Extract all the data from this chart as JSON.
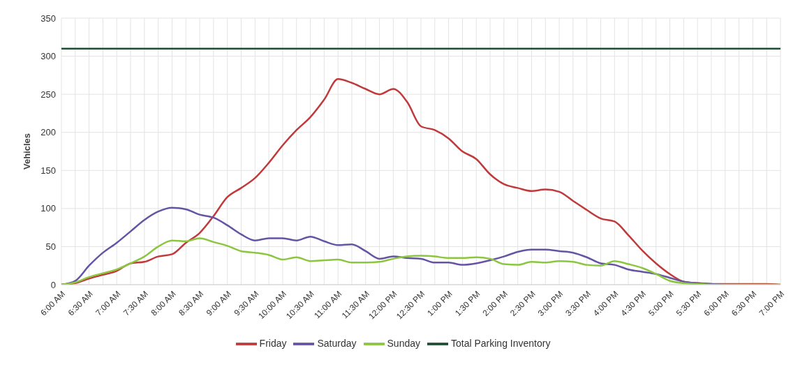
{
  "chart_data": {
    "type": "line",
    "ylabel": "Vehicles",
    "categories": [
      "6:00 AM",
      null,
      "6:30 AM",
      null,
      "7:00 AM",
      null,
      "7:30 AM",
      null,
      "8:00 AM",
      null,
      "8:30 AM",
      null,
      "9:00 AM",
      null,
      "9:30 AM",
      null,
      "10:00 AM",
      null,
      "10:30 AM",
      null,
      "11:00 AM",
      null,
      "11:30 AM",
      null,
      "12:00 PM",
      null,
      "12:30 PM",
      null,
      "1:00 PM",
      null,
      "1:30 PM",
      null,
      "2:00 PM",
      null,
      "2:30 PM",
      null,
      "3:00 PM",
      null,
      "3:30 PM",
      null,
      "4:00 PM",
      null,
      "4:30 PM",
      null,
      "5:00 PM",
      null,
      "5:30 PM",
      null,
      "6:00 PM",
      null,
      "6:30 PM",
      null,
      "7:00 PM"
    ],
    "series": [
      {
        "name": "Friday",
        "color": "#c0393b",
        "values": [
          0,
          2,
          8,
          13,
          18,
          28,
          30,
          37,
          40,
          55,
          68,
          90,
          115,
          127,
          140,
          160,
          183,
          203,
          220,
          243,
          270,
          265,
          257,
          250,
          257,
          240,
          208,
          203,
          192,
          175,
          165,
          145,
          132,
          127,
          123,
          125,
          122,
          110,
          98,
          87,
          83,
          65,
          45,
          28,
          14,
          4,
          2,
          1,
          1,
          1,
          1,
          1,
          0
        ]
      },
      {
        "name": "Saturday",
        "color": "#6553a3",
        "values": [
          0,
          5,
          25,
          42,
          55,
          70,
          85,
          96,
          101,
          99,
          92,
          88,
          78,
          66,
          58,
          61,
          61,
          58,
          63,
          57,
          52,
          53,
          44,
          34,
          37,
          35,
          34,
          29,
          29,
          26,
          28,
          32,
          37,
          43,
          46,
          46,
          44,
          42,
          36,
          28,
          26,
          20,
          17,
          14,
          9,
          4,
          2,
          1,
          0,
          0,
          null,
          null,
          null
        ]
      },
      {
        "name": "Sunday",
        "color": "#8cc63f",
        "values": [
          0,
          3,
          10,
          15,
          20,
          28,
          37,
          50,
          58,
          57,
          61,
          56,
          51,
          44,
          42,
          39,
          33,
          36,
          31,
          32,
          33,
          29,
          29,
          30,
          34,
          37,
          38,
          37,
          35,
          35,
          36,
          34,
          27,
          26,
          30,
          29,
          31,
          30,
          26,
          25,
          31,
          27,
          22,
          14,
          5,
          2,
          1,
          0,
          0,
          0,
          0,
          0,
          0
        ]
      },
      {
        "name": "Total Parking Inventory",
        "color": "#1f4e35",
        "values": [
          310,
          310,
          310,
          310,
          310,
          310,
          310,
          310,
          310,
          310,
          310,
          310,
          310,
          310,
          310,
          310,
          310,
          310,
          310,
          310,
          310,
          310,
          310,
          310,
          310,
          310,
          310,
          310,
          310,
          310,
          310,
          310,
          310,
          310,
          310,
          310,
          310,
          310,
          310,
          310,
          310,
          310,
          310,
          310,
          310,
          310,
          310,
          310,
          310,
          310,
          310,
          310,
          310
        ]
      }
    ],
    "ylim": [
      0,
      350
    ],
    "yticks": [
      0,
      50,
      100,
      150,
      200,
      250,
      300,
      350
    ],
    "grid": true,
    "legend": "bottom",
    "marker": "none",
    "line_style": "solid"
  }
}
